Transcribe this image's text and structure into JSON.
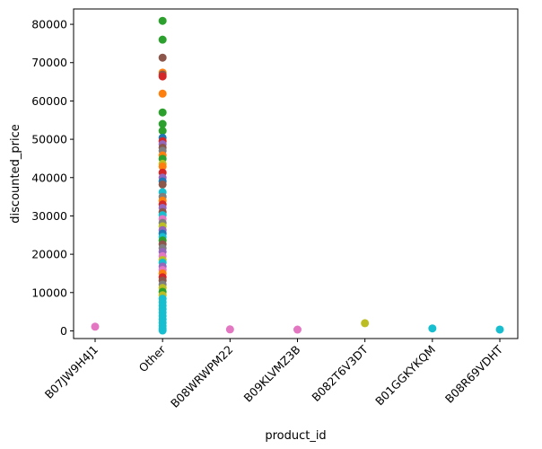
{
  "chart_data": {
    "type": "scatter",
    "title": "",
    "xlabel": "product_id",
    "ylabel": "discounted_price",
    "categories": [
      "B07JW9H4J1",
      "Other",
      "B08WRWPM22",
      "B09KLVMZ3B",
      "B082T6V3DT",
      "B01GGKYKQM",
      "B08R69VDHT"
    ],
    "ylim": [
      -2000,
      84000
    ],
    "yticks": [
      0,
      10000,
      20000,
      30000,
      40000,
      50000,
      60000,
      70000,
      80000
    ],
    "ytick_labels": [
      "0",
      "10000",
      "20000",
      "30000",
      "40000",
      "50000",
      "60000",
      "70000",
      "80000"
    ],
    "grid": false,
    "legend": "none",
    "palette": [
      "#1f77b4",
      "#ff7f0e",
      "#2ca02c",
      "#d62728",
      "#9467bd",
      "#8c564b",
      "#e377c2",
      "#7f7f7f",
      "#bcbd22",
      "#17becf"
    ],
    "points": [
      {
        "x": "B07JW9H4J1",
        "y": 1099,
        "color": "#e377c2"
      },
      {
        "x": "B08WRWPM22",
        "y": 399,
        "color": "#e377c2"
      },
      {
        "x": "B09KLVMZ3B",
        "y": 329,
        "color": "#e377c2"
      },
      {
        "x": "B082T6V3DT",
        "y": 1999,
        "color": "#bcbd22"
      },
      {
        "x": "B01GGKYKQM",
        "y": 649,
        "color": "#17becf"
      },
      {
        "x": "B08R69VDHT",
        "y": 349,
        "color": "#17becf"
      },
      {
        "x": "Other",
        "y": 80900,
        "color": "#2ca02c"
      },
      {
        "x": "Other",
        "y": 76000,
        "color": "#2ca02c"
      },
      {
        "x": "Other",
        "y": 71300,
        "color": "#8c564b"
      },
      {
        "x": "Other",
        "y": 67400,
        "color": "#ff7f0e"
      },
      {
        "x": "Other",
        "y": 66900,
        "color": "#8c564b"
      },
      {
        "x": "Other",
        "y": 66400,
        "color": "#d62728"
      },
      {
        "x": "Other",
        "y": 61900,
        "color": "#ff7f0e"
      },
      {
        "x": "Other",
        "y": 57000,
        "color": "#2ca02c"
      },
      {
        "x": "Other",
        "y": 54000,
        "color": "#2ca02c"
      },
      {
        "x": "Other",
        "y": 52200,
        "color": "#2ca02c"
      },
      {
        "x": "Other",
        "y": 50400,
        "color": "#1f77b4"
      },
      {
        "x": "Other",
        "y": 49500,
        "color": "#d62728"
      },
      {
        "x": "Other",
        "y": 48700,
        "color": "#9467bd"
      },
      {
        "x": "Other",
        "y": 47800,
        "color": "#8c564b"
      },
      {
        "x": "Other",
        "y": 47000,
        "color": "#7f7f7f"
      },
      {
        "x": "Other",
        "y": 45800,
        "color": "#ff7f0e"
      },
      {
        "x": "Other",
        "y": 44900,
        "color": "#2ca02c"
      },
      {
        "x": "Other",
        "y": 43600,
        "color": "#bcbd22"
      },
      {
        "x": "Other",
        "y": 42900,
        "color": "#ff7f0e"
      },
      {
        "x": "Other",
        "y": 41300,
        "color": "#d62728"
      },
      {
        "x": "Other",
        "y": 40000,
        "color": "#9467bd"
      },
      {
        "x": "Other",
        "y": 39000,
        "color": "#1f77b4"
      },
      {
        "x": "Other",
        "y": 38200,
        "color": "#8c564b"
      },
      {
        "x": "Other",
        "y": 36200,
        "color": "#17becf"
      },
      {
        "x": "Other",
        "y": 35000,
        "color": "#7f7f7f"
      },
      {
        "x": "Other",
        "y": 34000,
        "color": "#ff7f0e"
      },
      {
        "x": "Other",
        "y": 33000,
        "color": "#d62728"
      },
      {
        "x": "Other",
        "y": 32100,
        "color": "#9467bd"
      },
      {
        "x": "Other",
        "y": 31000,
        "color": "#8c564b"
      },
      {
        "x": "Other",
        "y": 30200,
        "color": "#17becf"
      },
      {
        "x": "Other",
        "y": 29200,
        "color": "#e377c2"
      },
      {
        "x": "Other",
        "y": 28200,
        "color": "#7f7f7f"
      },
      {
        "x": "Other",
        "y": 27300,
        "color": "#bcbd22"
      },
      {
        "x": "Other",
        "y": 26300,
        "color": "#9467bd"
      },
      {
        "x": "Other",
        "y": 25400,
        "color": "#1f77b4"
      },
      {
        "x": "Other",
        "y": 24500,
        "color": "#17becf"
      },
      {
        "x": "Other",
        "y": 23600,
        "color": "#2ca02c"
      },
      {
        "x": "Other",
        "y": 22600,
        "color": "#8c564b"
      },
      {
        "x": "Other",
        "y": 21600,
        "color": "#7f7f7f"
      },
      {
        "x": "Other",
        "y": 20600,
        "color": "#9467bd"
      },
      {
        "x": "Other",
        "y": 19500,
        "color": "#e377c2"
      },
      {
        "x": "Other",
        "y": 18500,
        "color": "#bcbd22"
      },
      {
        "x": "Other",
        "y": 17800,
        "color": "#17becf"
      },
      {
        "x": "Other",
        "y": 16800,
        "color": "#9467bd"
      },
      {
        "x": "Other",
        "y": 15900,
        "color": "#e377c2"
      },
      {
        "x": "Other",
        "y": 15000,
        "color": "#ff7f0e"
      },
      {
        "x": "Other",
        "y": 14000,
        "color": "#d62728"
      },
      {
        "x": "Other",
        "y": 13100,
        "color": "#8c564b"
      },
      {
        "x": "Other",
        "y": 12100,
        "color": "#7f7f7f"
      },
      {
        "x": "Other",
        "y": 11200,
        "color": "#bcbd22"
      },
      {
        "x": "Other",
        "y": 10200,
        "color": "#2ca02c"
      },
      {
        "x": "Other",
        "y": 9300,
        "color": "#bcbd22"
      },
      {
        "x": "Other",
        "y": 8400,
        "color": "#17becf"
      },
      {
        "x": "Other",
        "y": 7500,
        "color": "#17becf"
      },
      {
        "x": "Other",
        "y": 6600,
        "color": "#17becf"
      },
      {
        "x": "Other",
        "y": 5700,
        "color": "#17becf"
      },
      {
        "x": "Other",
        "y": 4800,
        "color": "#17becf"
      },
      {
        "x": "Other",
        "y": 3900,
        "color": "#17becf"
      },
      {
        "x": "Other",
        "y": 3000,
        "color": "#17becf"
      },
      {
        "x": "Other",
        "y": 2100,
        "color": "#17becf"
      },
      {
        "x": "Other",
        "y": 1300,
        "color": "#17becf"
      },
      {
        "x": "Other",
        "y": 600,
        "color": "#17becf"
      },
      {
        "x": "Other",
        "y": 100,
        "color": "#17becf"
      }
    ]
  }
}
